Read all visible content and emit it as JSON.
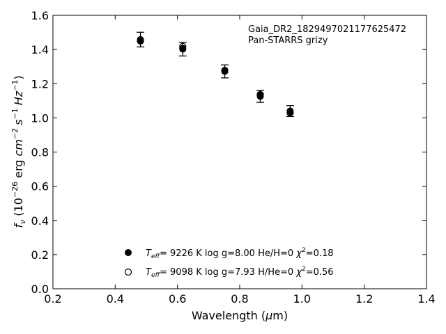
{
  "chart_data": {
    "type": "scatter",
    "xlabel": "Wavelength (µm)",
    "xlabel_parts": {
      "pre": "Wavelength (",
      "mu": "µ",
      "post": "m)"
    },
    "ylabel": "f_ν (10^−26 erg cm^−2 s^−1 Hz^−1)",
    "ylabel_parts": {
      "f": "f",
      "nu": "ν",
      "open": " (10",
      "exp26": "−26",
      "erg": " erg ",
      "cm": "cm",
      "expm2": "−2",
      "s": "s",
      "expm1a": "−1",
      "hz": "Hz",
      "expm1b": "−1",
      "close": ")"
    },
    "xlim": [
      0.2,
      1.4
    ],
    "ylim": [
      0.0,
      1.6
    ],
    "xticks": [
      "0.2",
      "0.4",
      "0.6",
      "0.8",
      "1.0",
      "1.2",
      "1.4"
    ],
    "yticks": [
      "0.0",
      "0.2",
      "0.4",
      "0.6",
      "0.8",
      "1.0",
      "1.2",
      "1.4",
      "1.6"
    ],
    "grid": false,
    "annotations": [
      "Gaia_DR2_1829497021177625472",
      "Pan-STARRS grizy"
    ],
    "series": [
      {
        "marker": "filled-circle-errorbar",
        "x": [
          0.481,
          0.617,
          0.752,
          0.866,
          0.962
        ],
        "y": [
          1.458,
          1.402,
          1.272,
          1.126,
          1.04
        ],
        "yerr": [
          0.043,
          0.04,
          0.038,
          0.035,
          0.032
        ]
      },
      {
        "marker": "filled-circle",
        "x": [
          0.481,
          0.617,
          0.752,
          0.866,
          0.962
        ],
        "y": [
          1.45,
          1.407,
          1.275,
          1.135,
          1.03
        ]
      },
      {
        "marker": "open-circle",
        "x": [
          0.481,
          0.617,
          0.752,
          0.866,
          0.962
        ],
        "y": [
          1.45,
          1.418,
          1.278,
          1.137,
          1.03
        ]
      }
    ],
    "legend": {
      "placement": "lower-center",
      "entries": [
        {
          "marker": "filled-circle",
          "teff_sym": "T",
          "teff_sub": "eff",
          "teff_val": "=  9226 K  log g=8.00  He/H=0  ",
          "chi_sym": "χ",
          "chi_sup": "2",
          "chi_val": "=0.18"
        },
        {
          "marker": "open-circle",
          "teff_sym": "T",
          "teff_sub": "eff",
          "teff_val": "=  9098 K  log g=7.93  H/He=0  ",
          "chi_sym": "χ",
          "chi_sup": "2",
          "chi_val": "=0.56"
        }
      ]
    }
  }
}
